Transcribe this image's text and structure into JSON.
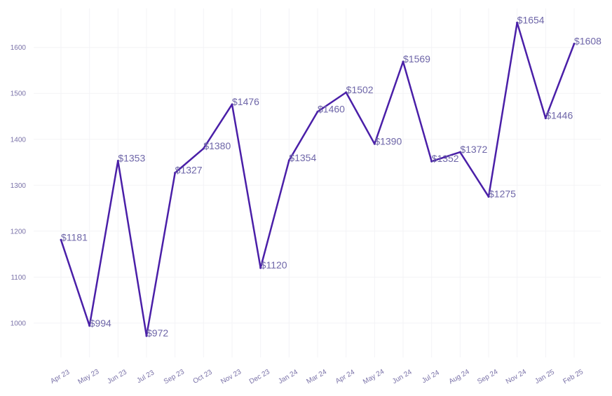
{
  "chart_data": {
    "type": "line",
    "title": "",
    "xlabel": "",
    "ylabel": "",
    "categories": [
      "Apr 23",
      "May 23",
      "Jun 23",
      "Jul 23",
      "Sep 23",
      "Oct 23",
      "Nov 23",
      "Dec 23",
      "Jan 24",
      "Mar 24",
      "Apr 24",
      "May 24",
      "Jun 24",
      "Jul 24",
      "Aug 24",
      "Sep 24",
      "Nov 24",
      "Jan 25",
      "Feb 25"
    ],
    "series": [
      {
        "values": [
          1181,
          994,
          1353,
          972,
          1327,
          1380,
          1476,
          1120,
          1354,
          1460,
          1502,
          1390,
          1569,
          1352,
          1372,
          1275,
          1654,
          1446,
          1608
        ]
      }
    ],
    "data_labels": [
      "$1181",
      "$994",
      "$1353",
      "$972",
      "$1327",
      "$1380",
      "$1476",
      "$1120",
      "$1354",
      "$1460",
      "$1502",
      "$1390",
      "$1569",
      "$1352",
      "$1372",
      "$1275",
      "$1654",
      "$1446",
      "$1608"
    ],
    "ylim": [
      925,
      1685
    ],
    "yticks": [
      1000,
      1100,
      1200,
      1300,
      1400,
      1500,
      1600
    ],
    "ytick_labels": [
      "1000",
      "1100",
      "1200",
      "1300",
      "1400",
      "1500",
      "1600"
    ],
    "grid": true,
    "legend": "none",
    "colors": {
      "line": "#4a1fa8",
      "label": "#6e66a8",
      "tick": "#7a72a8",
      "grid": "#f3f3f6"
    }
  }
}
